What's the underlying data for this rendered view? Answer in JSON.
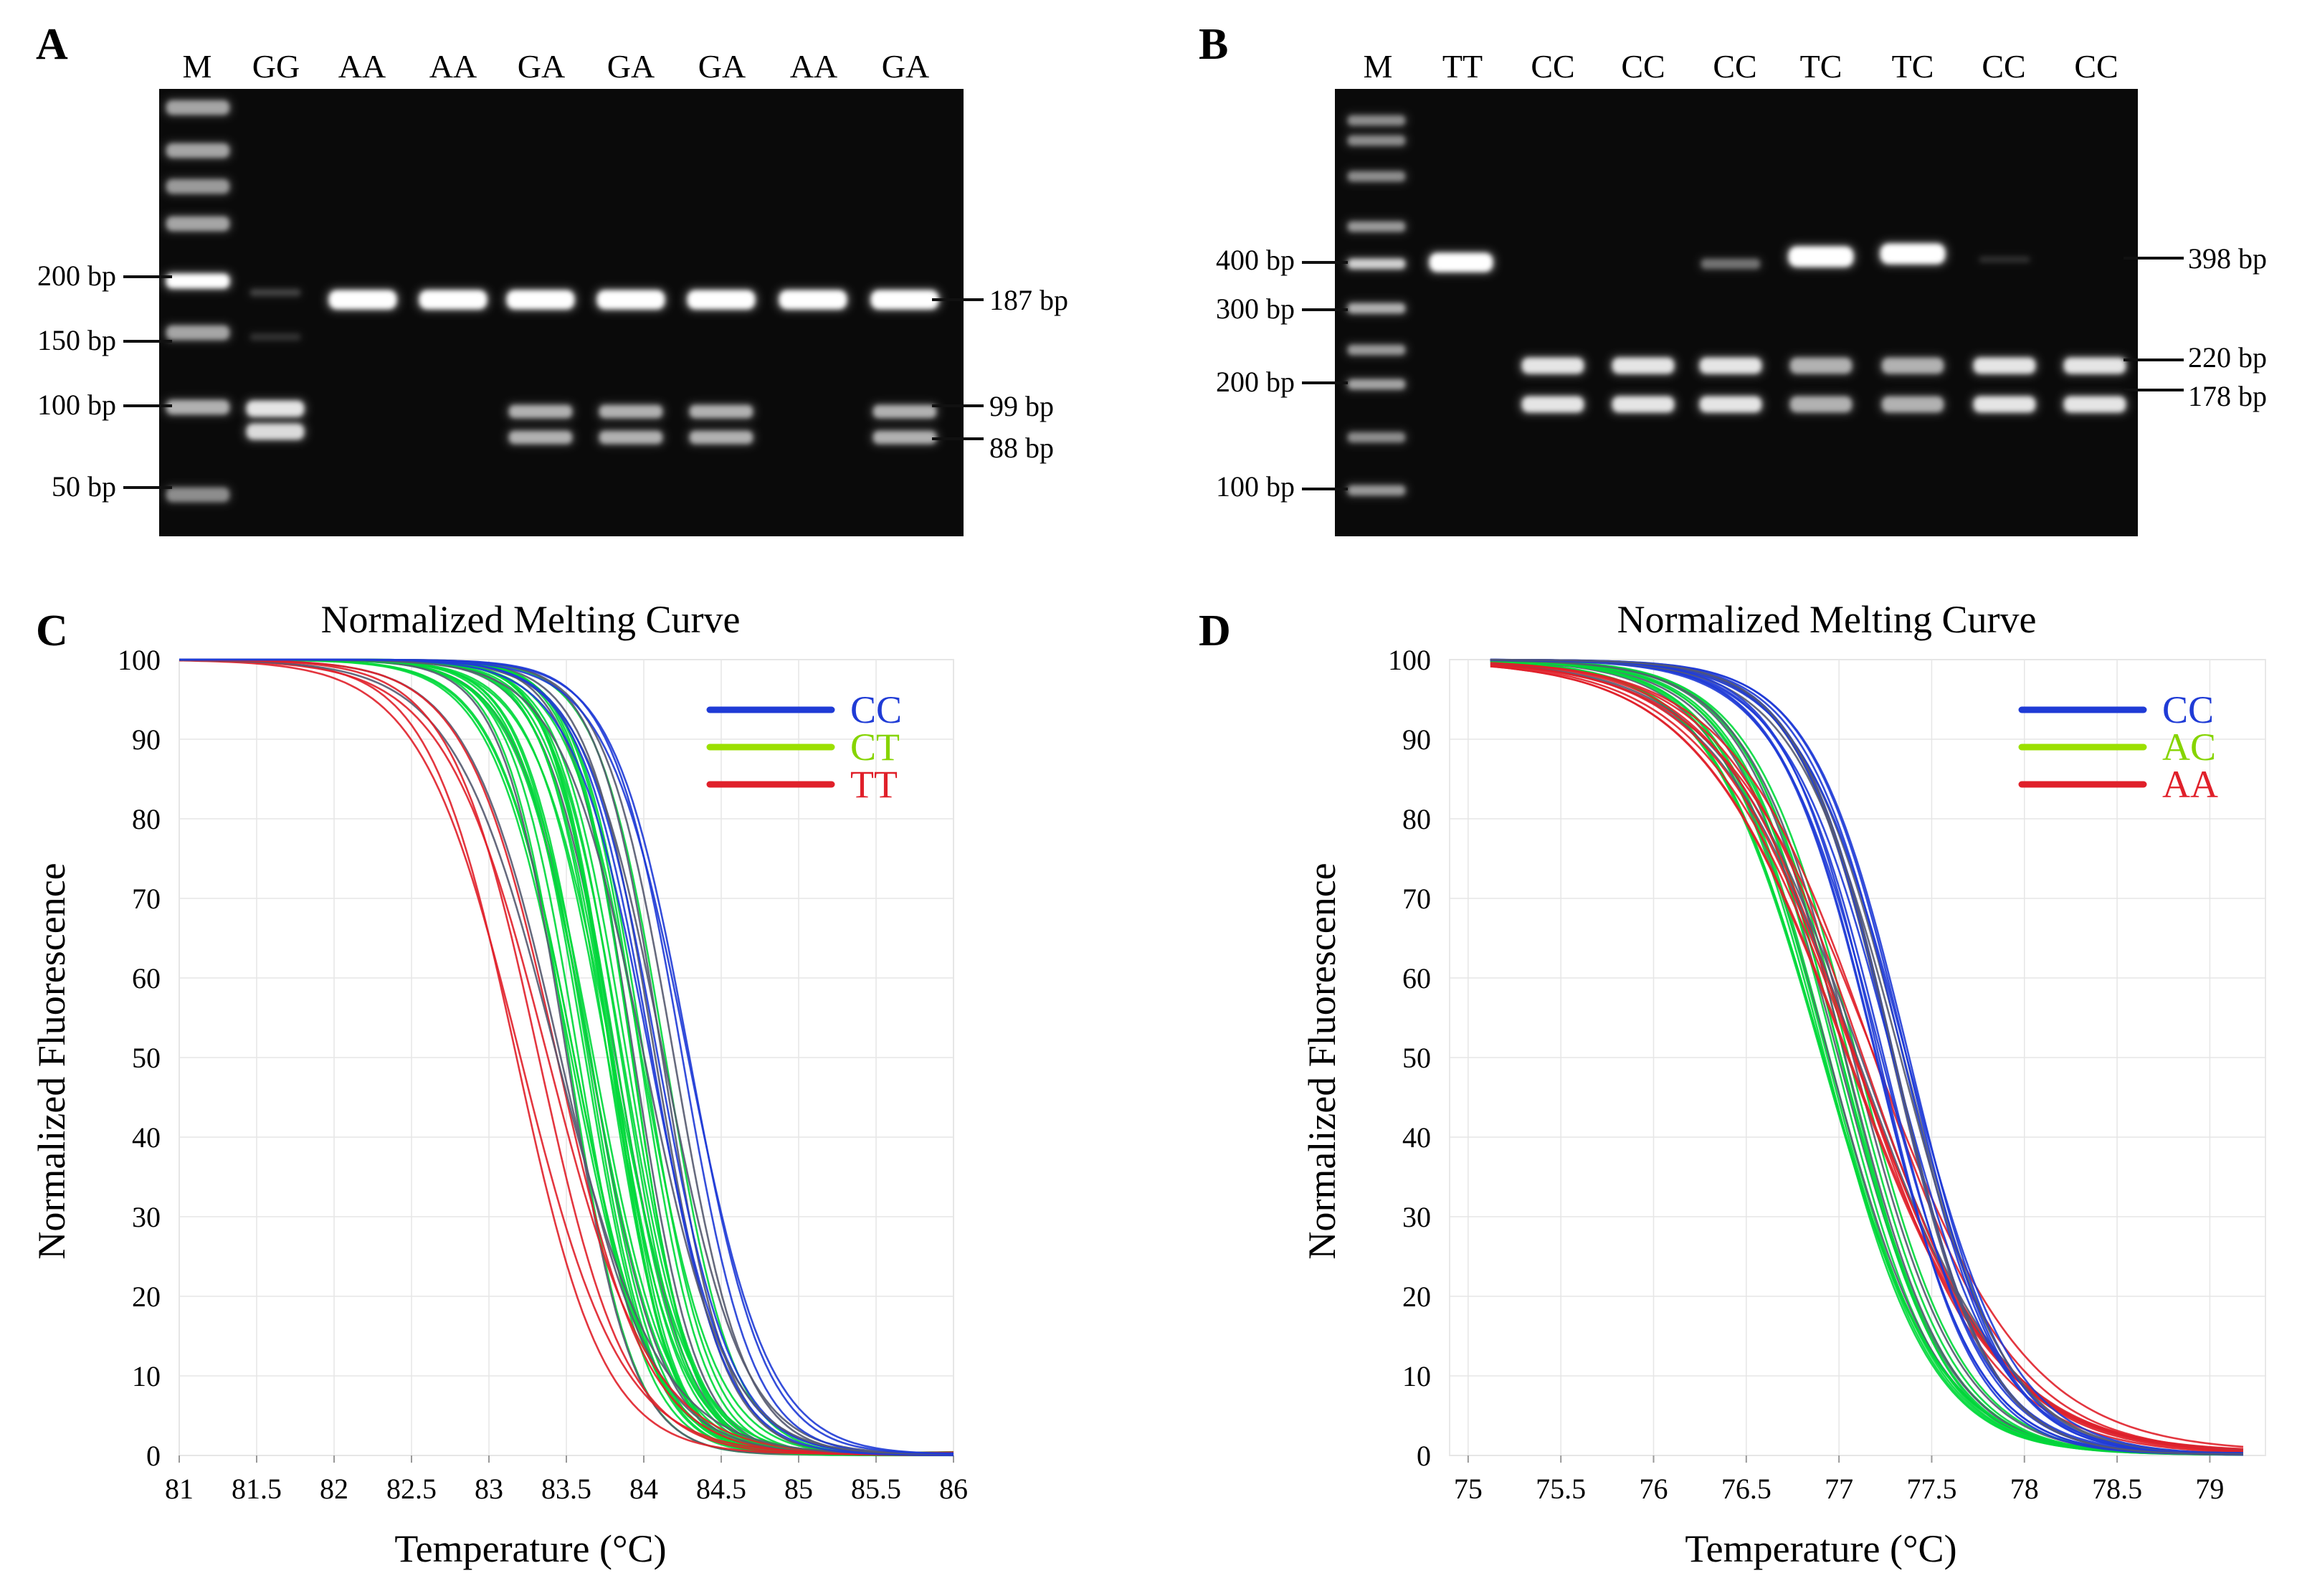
{
  "colors": {
    "gel_bg": "#0a0a0a",
    "band": "#ffffff",
    "cc": "#1f3bd6",
    "ct": "#00d83a",
    "tt": "#e0202a",
    "legend_ct": "#9be000",
    "legend_c_text": "#1f3bd6",
    "legend_ct_text": "#86d400",
    "legend_tt_text": "#e0202a",
    "grid": "#e6e6e6"
  },
  "panelA": {
    "letter": "A",
    "lanes": [
      "M",
      "GG",
      "AA",
      "AA",
      "GA",
      "GA",
      "GA",
      "AA",
      "GA"
    ],
    "left_markers": [
      "200 bp",
      "150 bp",
      "100 bp",
      "50 bp"
    ],
    "right_markers": [
      "187 bp",
      "99 bp",
      "88 bp"
    ]
  },
  "panelB": {
    "letter": "B",
    "lanes": [
      "M",
      "TT",
      "CC",
      "CC",
      "CC",
      "TC",
      "TC",
      "CC",
      "CC"
    ],
    "left_markers": [
      "400 bp",
      "300 bp",
      "200 bp",
      "100 bp"
    ],
    "right_markers": [
      "398 bp",
      "220 bp",
      "178 bp"
    ]
  },
  "chart_data": [
    {
      "panel": "C",
      "type": "line",
      "title": "Normalized Melting Curve",
      "xlabel": "Temperature (°C)",
      "ylabel": "Normalized Fluorescence",
      "xlim": [
        81,
        86
      ],
      "ylim": [
        0,
        100
      ],
      "x_ticks": [
        "81",
        "81.5",
        "82",
        "82.5",
        "83",
        "83.5",
        "84",
        "84.5",
        "85",
        "85.5",
        "86"
      ],
      "y_ticks": [
        "0",
        "10",
        "20",
        "30",
        "40",
        "50",
        "60",
        "70",
        "80",
        "90",
        "100"
      ],
      "legend": [
        "CC",
        "CT",
        "TT"
      ],
      "legend_position": "top-right",
      "series": [
        {
          "name": "CC",
          "curves": 8,
          "tm_min": 84.0,
          "tm_max": 84.4,
          "slope_min": 0.22,
          "slope_max": 0.28
        },
        {
          "name": "CT",
          "curves": 34,
          "tm_min": 83.5,
          "tm_max": 84.15,
          "slope_min": 0.18,
          "slope_max": 0.26
        },
        {
          "name": "TT",
          "curves": 7,
          "tm_min": 83.15,
          "tm_max": 83.5,
          "slope_min": 0.28,
          "slope_max": 0.34
        }
      ]
    },
    {
      "panel": "D",
      "type": "line",
      "title": "Normalized Melting Curve",
      "xlabel": "Temperature (°C)",
      "ylabel": "Normalized Fluorescence",
      "xlim": [
        74.9,
        79.3
      ],
      "ylim": [
        0,
        100
      ],
      "x_ticks": [
        "75",
        "75.5",
        "76",
        "76.5",
        "77",
        "77.5",
        "78",
        "78.5",
        "79"
      ],
      "y_ticks": [
        "0",
        "10",
        "20",
        "30",
        "40",
        "50",
        "60",
        "70",
        "80",
        "90",
        "100"
      ],
      "legend": [
        "CC",
        "AC",
        "AA"
      ],
      "legend_position": "top-right",
      "series": [
        {
          "name": "CC",
          "curves": 16,
          "tm_min": 77.2,
          "tm_max": 77.4,
          "slope_min": 0.25,
          "slope_max": 0.29
        },
        {
          "name": "AC",
          "curves": 16,
          "tm_min": 76.9,
          "tm_max": 77.1,
          "slope_min": 0.26,
          "slope_max": 0.31
        },
        {
          "name": "AA",
          "curves": 10,
          "tm_min": 77.0,
          "tm_max": 77.2,
          "slope_min": 0.36,
          "slope_max": 0.42
        }
      ]
    }
  ]
}
